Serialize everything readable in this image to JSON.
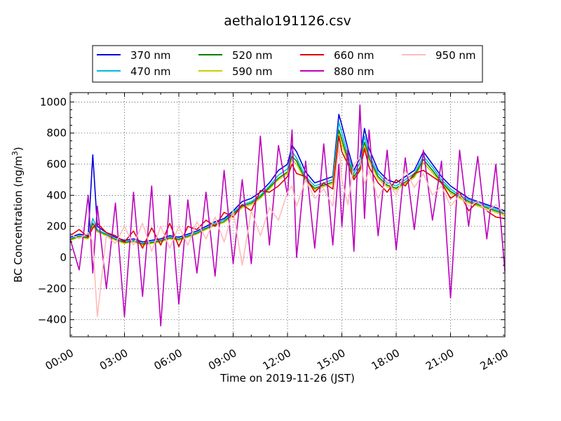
{
  "chart_data": {
    "type": "line",
    "title": "aethalo191126.csv",
    "xlabel": "Time on 2019-11-26 (JST)",
    "ylabel": "BC Concentration (ng/m³)",
    "xlim": [
      "00:00",
      "24:00"
    ],
    "ylim": [
      -510,
      1060
    ],
    "x_tick_labels": [
      "00:00",
      "03:00",
      "06:00",
      "09:00",
      "12:00",
      "15:00",
      "18:00",
      "21:00",
      "24:00"
    ],
    "y_ticks": [
      -400,
      -200,
      0,
      200,
      400,
      600,
      800,
      1000
    ],
    "grid": true,
    "legend_position": "top-center",
    "x": [
      "00:00",
      "00:30",
      "01:00",
      "01:15",
      "01:30",
      "02:00",
      "02:30",
      "03:00",
      "03:30",
      "04:00",
      "04:30",
      "05:00",
      "05:30",
      "06:00",
      "06:30",
      "07:00",
      "07:30",
      "08:00",
      "08:30",
      "09:00",
      "09:30",
      "10:00",
      "10:30",
      "11:00",
      "11:30",
      "12:00",
      "12:15",
      "12:30",
      "13:00",
      "13:30",
      "14:00",
      "14:30",
      "14:50",
      "15:00",
      "15:20",
      "15:40",
      "16:00",
      "16:15",
      "16:30",
      "17:00",
      "17:30",
      "18:00",
      "18:30",
      "19:00",
      "19:30",
      "20:00",
      "20:30",
      "21:00",
      "21:30",
      "22:00",
      "22:30",
      "23:00",
      "23:30",
      "24:00"
    ],
    "series": [
      {
        "name": "370 nm",
        "color": "#0000dd",
        "values": [
          130,
          150,
          140,
          660,
          200,
          160,
          130,
          110,
          120,
          100,
          110,
          120,
          140,
          130,
          150,
          170,
          200,
          230,
          250,
          300,
          360,
          380,
          420,
          480,
          560,
          600,
          720,
          680,
          550,
          480,
          500,
          520,
          920,
          850,
          700,
          560,
          640,
          830,
          700,
          560,
          500,
          480,
          520,
          560,
          680,
          600,
          520,
          460,
          420,
          380,
          360,
          340,
          320,
          300
        ]
      },
      {
        "name": "470 nm",
        "color": "#00bbdd",
        "values": [
          120,
          140,
          130,
          250,
          180,
          150,
          120,
          100,
          110,
          90,
          100,
          110,
          130,
          120,
          140,
          160,
          190,
          220,
          240,
          290,
          340,
          360,
          400,
          460,
          530,
          570,
          680,
          640,
          520,
          460,
          480,
          500,
          870,
          800,
          660,
          540,
          610,
          780,
          660,
          540,
          480,
          460,
          500,
          540,
          650,
          580,
          500,
          440,
          400,
          370,
          350,
          330,
          310,
          290
        ]
      },
      {
        "name": "520 nm",
        "color": "#008000",
        "values": [
          115,
          135,
          125,
          220,
          170,
          145,
          115,
          95,
          105,
          85,
          95,
          105,
          125,
          115,
          135,
          155,
          185,
          210,
          230,
          280,
          330,
          350,
          390,
          450,
          510,
          550,
          650,
          620,
          500,
          445,
          465,
          485,
          820,
          760,
          630,
          520,
          580,
          740,
          640,
          520,
          465,
          445,
          485,
          525,
          630,
          560,
          485,
          425,
          390,
          360,
          340,
          320,
          300,
          280
        ]
      },
      {
        "name": "590 nm",
        "color": "#cccc00",
        "values": [
          110,
          130,
          120,
          200,
          165,
          140,
          110,
          90,
          100,
          80,
          90,
          100,
          120,
          110,
          130,
          150,
          180,
          205,
          225,
          270,
          320,
          340,
          380,
          440,
          500,
          540,
          630,
          600,
          490,
          435,
          455,
          475,
          790,
          730,
          610,
          505,
          565,
          720,
          620,
          505,
          455,
          435,
          475,
          515,
          610,
          545,
          475,
          415,
          380,
          350,
          330,
          310,
          290,
          270
        ]
      },
      {
        "name": "660 nm",
        "color": "#dd0000",
        "values": [
          140,
          180,
          130,
          190,
          220,
          160,
          140,
          100,
          170,
          60,
          190,
          80,
          220,
          70,
          200,
          180,
          240,
          200,
          290,
          260,
          340,
          300,
          430,
          420,
          460,
          520,
          600,
          540,
          520,
          420,
          480,
          440,
          780,
          680,
          600,
          500,
          560,
          700,
          580,
          480,
          420,
          500,
          460,
          540,
          560,
          520,
          480,
          380,
          420,
          300,
          360,
          300,
          260,
          250
        ]
      },
      {
        "name": "880 nm",
        "color": "#bb00bb",
        "values": [
          120,
          -80,
          400,
          -100,
          330,
          -200,
          350,
          -380,
          420,
          -250,
          460,
          -440,
          400,
          -300,
          370,
          -100,
          420,
          -120,
          560,
          -40,
          500,
          -40,
          780,
          80,
          720,
          400,
          820,
          0,
          620,
          60,
          730,
          80,
          600,
          200,
          700,
          40,
          980,
          250,
          820,
          140,
          690,
          50,
          640,
          180,
          690,
          240,
          620,
          -260,
          690,
          200,
          650,
          120,
          600,
          -90
        ]
      },
      {
        "name": "950 nm",
        "color": "#ffbbbb",
        "values": [
          150,
          120,
          160,
          100,
          -380,
          140,
          90,
          200,
          80,
          220,
          40,
          200,
          60,
          200,
          80,
          230,
          120,
          260,
          100,
          300,
          -50,
          300,
          140,
          320,
          240,
          420,
          460,
          330,
          500,
          380,
          440,
          330,
          720,
          500,
          340,
          600,
          640,
          470,
          560,
          380,
          500,
          400,
          560,
          450,
          540,
          400,
          460,
          330,
          400,
          330,
          360,
          300,
          340,
          280
        ]
      }
    ]
  }
}
